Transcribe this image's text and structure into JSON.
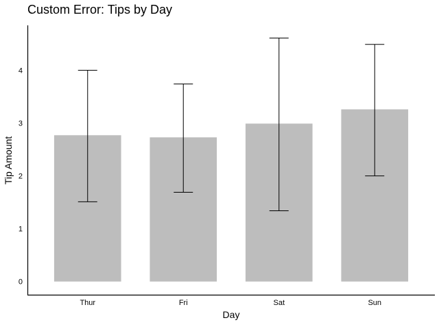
{
  "chart_data": {
    "type": "bar",
    "title": "Custom Error: Tips by Day",
    "xlabel": "Day",
    "ylabel": "Tip Amount",
    "categories": [
      "Thur",
      "Fri",
      "Sat",
      "Sun"
    ],
    "values": [
      2.77,
      2.73,
      2.99,
      3.26
    ],
    "error_low": [
      1.51,
      1.69,
      1.34,
      2.0
    ],
    "error_high": [
      4.0,
      3.74,
      4.61,
      4.49
    ],
    "ylim": [
      -0.25,
      4.85
    ],
    "yticks": [
      0,
      1,
      2,
      3,
      4
    ],
    "grid": false,
    "bar_color": "#bdbdbd",
    "error_color": "#000000"
  }
}
